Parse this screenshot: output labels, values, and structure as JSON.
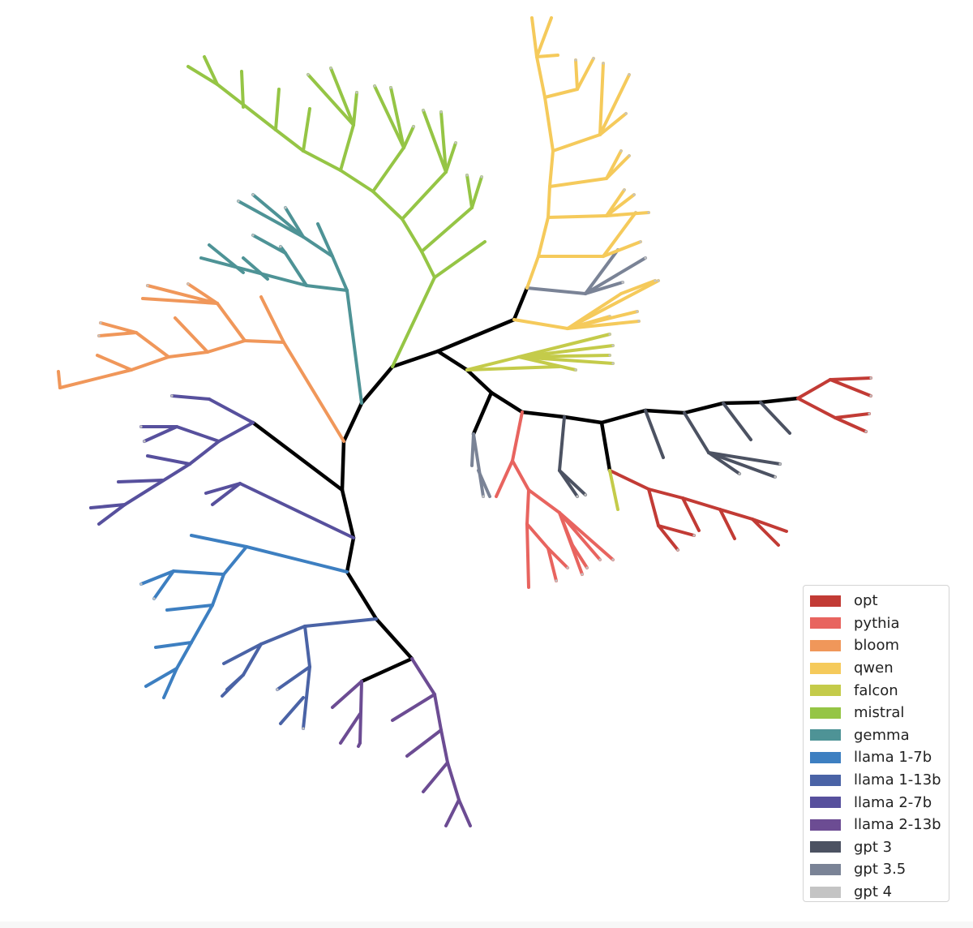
{
  "diagram": {
    "type": "phylogenetic-tree",
    "trunk_color": "#000000",
    "leaf_tip_color": "#c4c4c4"
  },
  "legend": {
    "items": [
      {
        "label": "opt",
        "color": "#c23b35"
      },
      {
        "label": "pythia",
        "color": "#e8645f"
      },
      {
        "label": "bloom",
        "color": "#f0975a"
      },
      {
        "label": "qwen",
        "color": "#f5ca5b"
      },
      {
        "label": "falcon",
        "color": "#c4cb4a"
      },
      {
        "label": "mistral",
        "color": "#95c545"
      },
      {
        "label": "gemma",
        "color": "#4e9396"
      },
      {
        "label": "llama 1-7b",
        "color": "#3d7fc1"
      },
      {
        "label": "llama 1-13b",
        "color": "#4a63a6"
      },
      {
        "label": "llama 2-7b",
        "color": "#57509d"
      },
      {
        "label": "llama 2-13b",
        "color": "#6c4c93"
      },
      {
        "label": "gpt 3",
        "color": "#4c5262"
      },
      {
        "label": "gpt 3.5",
        "color": "#7a8396"
      },
      {
        "label": "gpt 4",
        "color": "#c4c4c4"
      }
    ]
  }
}
